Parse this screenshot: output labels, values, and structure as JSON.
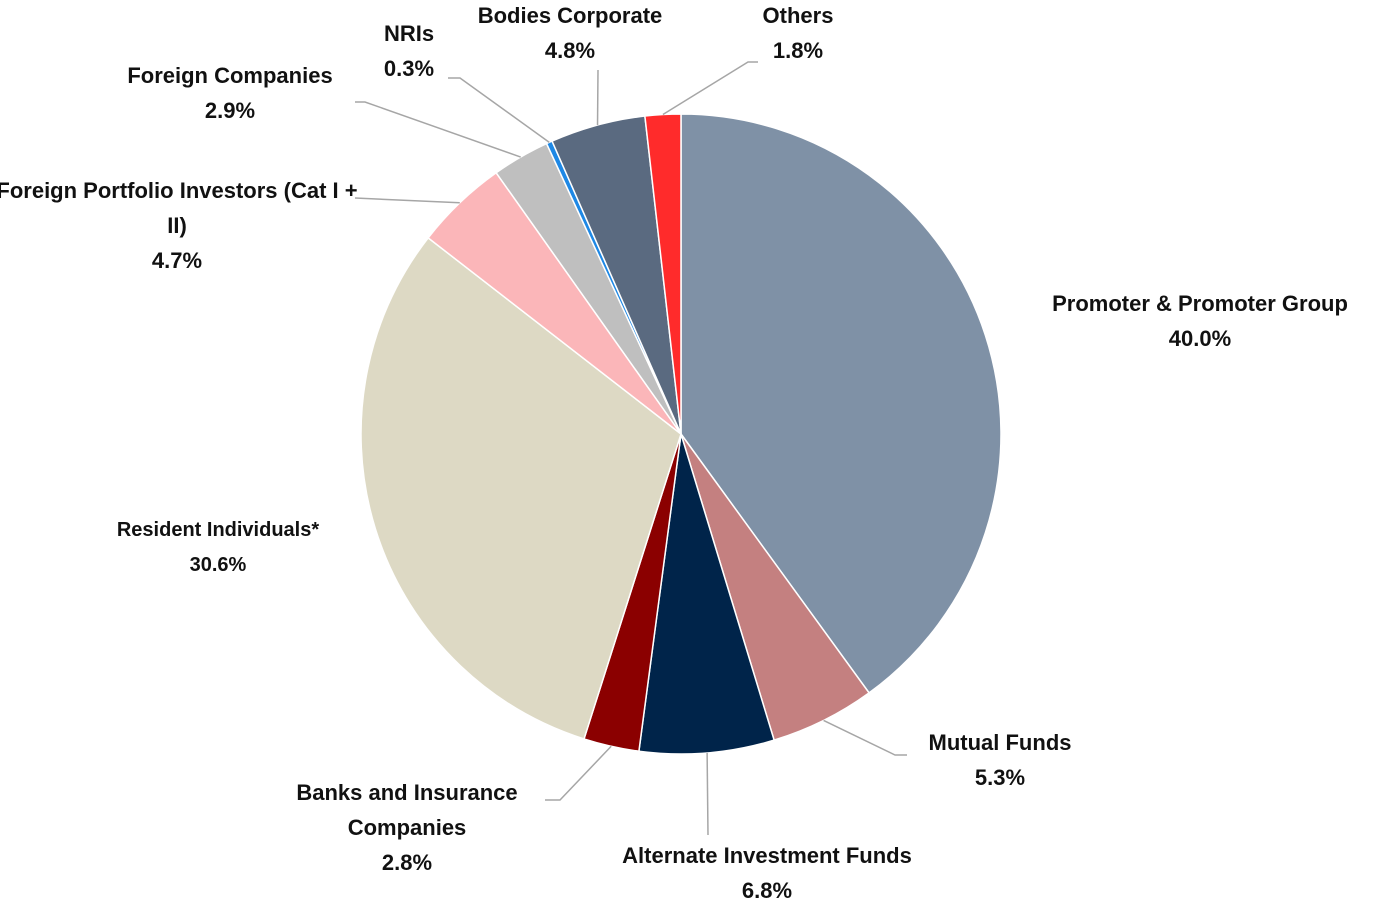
{
  "chart_data": {
    "type": "pie",
    "categories": [
      "Promoter & Promoter Group",
      "Mutual Funds",
      "Alternate Investment Funds",
      "Banks and Insurance Companies",
      "Resident Individuals*",
      "Foreign Portfolio Investors (Cat I + II)",
      "Foreign Companies",
      "NRIs",
      "Bodies Corporate",
      "Others"
    ],
    "values": [
      40.0,
      5.3,
      6.8,
      2.8,
      30.6,
      4.7,
      2.9,
      0.3,
      4.8,
      1.8
    ],
    "value_labels": [
      "40.0%",
      "5.3%",
      "6.8%",
      "2.8%",
      "30.6%",
      "4.7%",
      "2.9%",
      "0.3%",
      "4.8%",
      "1.8%"
    ],
    "colors": [
      "#7f91a6",
      "#c48080",
      "#00244a",
      "#8b0000",
      "#ddd9c4",
      "#fbb6b9",
      "#bfbfbf",
      "#1e88e5",
      "#5a6a80",
      "#ff2b2b"
    ]
  }
}
